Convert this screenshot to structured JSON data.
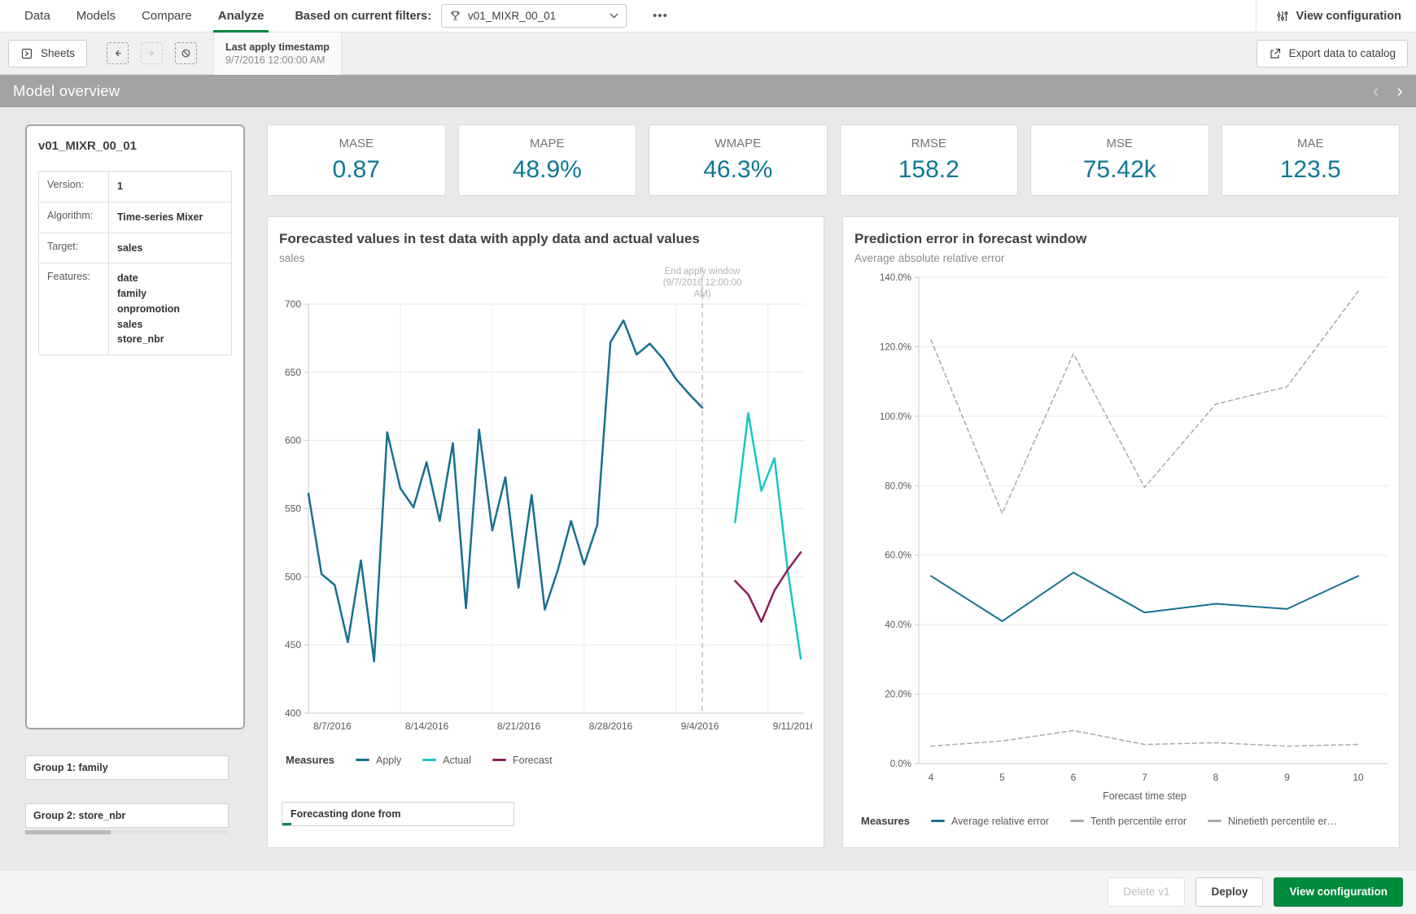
{
  "topnav": {
    "tabs": [
      {
        "label": "Data"
      },
      {
        "label": "Models"
      },
      {
        "label": "Compare"
      },
      {
        "label": "Analyze"
      }
    ],
    "active_tab": "Analyze",
    "filter_label": "Based on current filters:",
    "filter_value": "v01_MIXR_00_01",
    "more_label": "•••",
    "view_configuration_label": "View configuration"
  },
  "toolbar": {
    "sheets_label": "Sheets",
    "last_apply_label": "Last apply timestamp",
    "last_apply_value": "9/7/2016 12:00:00 AM",
    "export_label": "Export data to catalog"
  },
  "band": {
    "title": "Model overview",
    "prev": "‹",
    "next": "›"
  },
  "model_card": {
    "title": "v01_MIXR_00_01",
    "rows": [
      {
        "label": "Version:",
        "value": "1"
      },
      {
        "label": "Algorithm:",
        "value": "Time-series Mixer"
      },
      {
        "label": "Target:",
        "value": "sales"
      }
    ],
    "features_label": "Features:",
    "features": [
      "date",
      "family",
      "onpromotion",
      "sales",
      "store_nbr"
    ]
  },
  "groups": [
    {
      "label": "Group 1: family"
    },
    {
      "label": "Group 2: store_nbr"
    }
  ],
  "kpis": [
    {
      "label": "MASE",
      "value": "0.87"
    },
    {
      "label": "MAPE",
      "value": "48.9%"
    },
    {
      "label": "WMAPE",
      "value": "46.3%"
    },
    {
      "label": "RMSE",
      "value": "158.2"
    },
    {
      "label": "MSE",
      "value": "75.42k"
    },
    {
      "label": "MAE",
      "value": "123.5"
    }
  ],
  "footer": {
    "delete_label": "Delete v1",
    "deploy_label": "Deploy",
    "view_configuration_label": "View configuration"
  },
  "colors": {
    "accent_green": "#00873d",
    "teal_line": "#17708f",
    "cyan_line": "#15c7c3",
    "maroon_line": "#8c1e5a",
    "kpi_value": "#0f7895",
    "band_gray": "#a3a3a3",
    "dashed_gray": "#ababab"
  },
  "chart_data": [
    {
      "type": "line",
      "title": "Forecasted values in test data with apply data and actual values",
      "subtitle": "sales",
      "ylim": [
        400,
        700
      ],
      "y_ticks": [
        700,
        650,
        600,
        550,
        500,
        450,
        400
      ],
      "x_ticks": [
        "8/7/2016",
        "8/14/2016",
        "8/21/2016",
        "8/28/2016",
        "9/4/2016",
        "9/11/2016"
      ],
      "annotation_lines": [
        "End apply window",
        "(9/7/2016 12:00:00",
        "AM)"
      ],
      "end_apply_day": 30,
      "legend_title": "Measures",
      "footer_box_label": "Forecasting done from",
      "series": [
        {
          "name": "Apply",
          "color": "#17708f",
          "style": "solid",
          "start_day": 0,
          "values": [
            561,
            502,
            494,
            452,
            512,
            438,
            606,
            565,
            551,
            584,
            541,
            598,
            477,
            608,
            534,
            573,
            492,
            560,
            476,
            505,
            541,
            509,
            538,
            672,
            688,
            663,
            671,
            660,
            645,
            634,
            624
          ]
        },
        {
          "name": "Actual",
          "color": "#15c7c3",
          "style": "solid",
          "start_day": 32.5,
          "values": [
            540,
            620,
            563,
            587,
            505,
            440
          ]
        },
        {
          "name": "Forecast",
          "color": "#8c1e5a",
          "style": "solid",
          "start_day": 32.5,
          "values": [
            497,
            487,
            467,
            490,
            505,
            518
          ]
        }
      ]
    },
    {
      "type": "line",
      "title": "Prediction error in forecast window",
      "subtitle": "Average absolute relative error",
      "xlabel": "Forecast time step",
      "x": [
        4,
        5,
        6,
        7,
        8,
        9,
        10
      ],
      "ylim": [
        0,
        140
      ],
      "y_ticks_pct": [
        140,
        120,
        100,
        80,
        60,
        40,
        20,
        0
      ],
      "legend_title": "Measures",
      "series": [
        {
          "name": "Average relative error",
          "color": "#17708f",
          "style": "solid",
          "values": [
            54,
            41,
            55,
            43.5,
            46,
            44.5,
            54
          ]
        },
        {
          "name": "Tenth percentile error",
          "color": "#a9a9a9",
          "style": "dashed",
          "values": [
            5,
            6.5,
            9.5,
            5.5,
            6,
            5,
            5.5
          ]
        },
        {
          "name": "Ninetieth percentile er…",
          "color": "#a9a9a9",
          "style": "dashed",
          "values": [
            122,
            72,
            118,
            79.5,
            103.5,
            108.5,
            136
          ]
        }
      ]
    }
  ]
}
